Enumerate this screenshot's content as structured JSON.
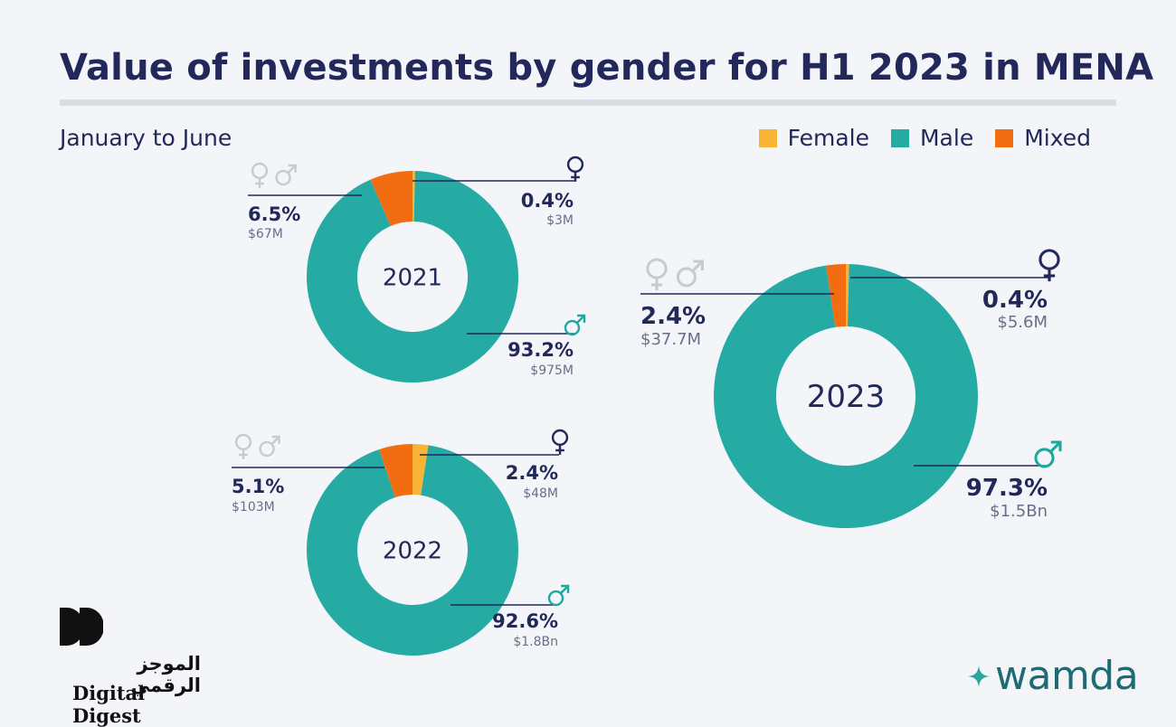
{
  "header": {
    "title": "Value of investments by gender for H1 2023 in MENA",
    "subtitle": "January to June"
  },
  "legend": [
    {
      "label": "Female",
      "color": "#f8b535"
    },
    {
      "label": "Male",
      "color": "#26aba4"
    },
    {
      "label": "Mixed",
      "color": "#f26c12"
    }
  ],
  "colors": {
    "female": "#f8b535",
    "male": "#26aba4",
    "mixed": "#f26c12",
    "text_dark": "#22285a",
    "text_muted": "#6b6f86",
    "icon_mixed": "#c8cad2",
    "icon_male": "#1ea89f"
  },
  "chart_data": [
    {
      "type": "pie",
      "center_label": "2021",
      "series": [
        {
          "name": "Female",
          "value": 0.4,
          "amount": "$3M",
          "pct": "0.4%"
        },
        {
          "name": "Male",
          "value": 93.2,
          "amount": "$975M",
          "pct": "93.2%"
        },
        {
          "name": "Mixed",
          "value": 6.5,
          "amount": "$67M",
          "pct": "6.5%"
        }
      ]
    },
    {
      "type": "pie",
      "center_label": "2022",
      "series": [
        {
          "name": "Female",
          "value": 2.4,
          "amount": "$48M",
          "pct": "2.4%"
        },
        {
          "name": "Male",
          "value": 92.6,
          "amount": "$1.8Bn",
          "pct": "92.6%"
        },
        {
          "name": "Mixed",
          "value": 5.1,
          "amount": "$103M",
          "pct": "5.1%"
        }
      ]
    },
    {
      "type": "pie",
      "center_label": "2023",
      "series": [
        {
          "name": "Female",
          "value": 0.4,
          "amount": "$5.6M",
          "pct": "0.4%"
        },
        {
          "name": "Male",
          "value": 97.3,
          "amount": "$1.5Bn",
          "pct": "97.3%"
        },
        {
          "name": "Mixed",
          "value": 2.4,
          "amount": "$37.7M",
          "pct": "2.4%"
        }
      ]
    }
  ],
  "logos": {
    "digital_digest_arabic": "الموجز الرقمي",
    "digital_digest_latin": "Digital Digest",
    "wamda": "wamda"
  }
}
